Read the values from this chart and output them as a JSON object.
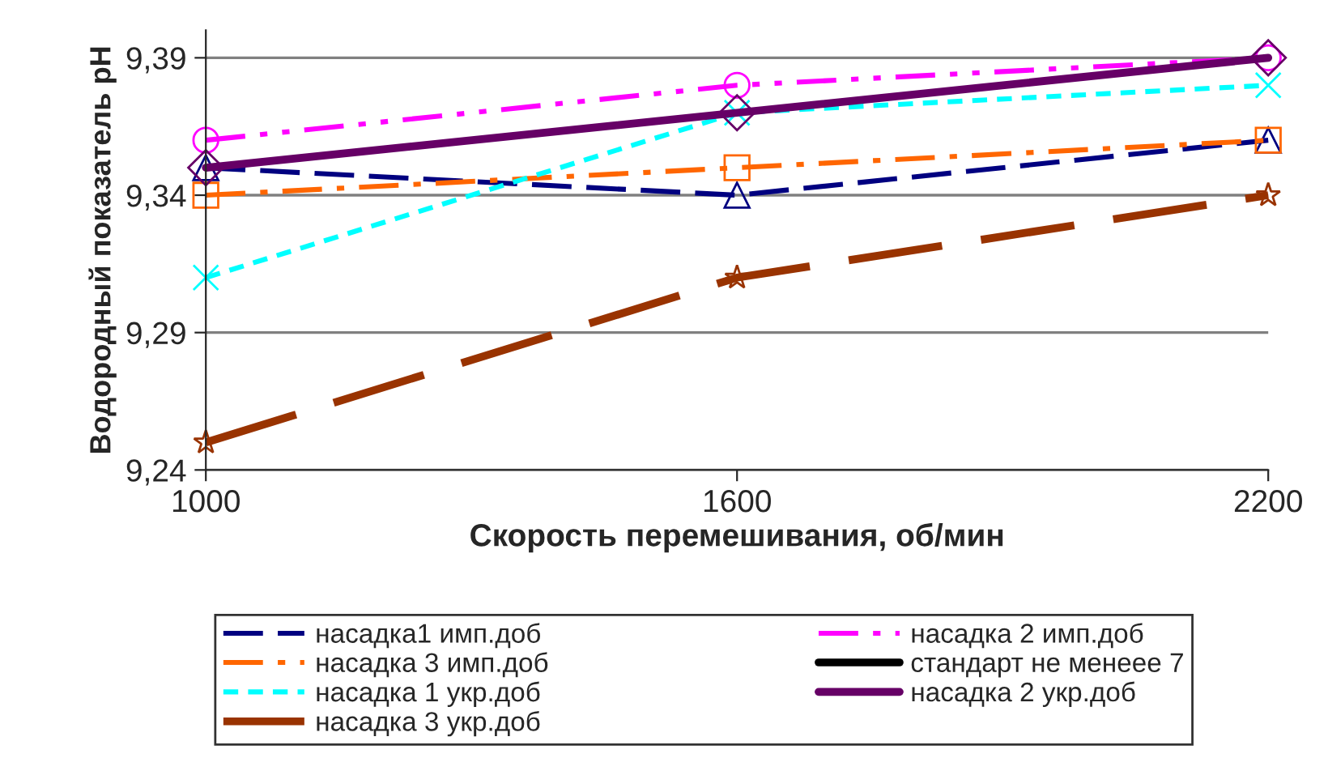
{
  "chart_data": {
    "type": "line",
    "xlabel": "Скорость перемешивания, об/мин",
    "ylabel": "Водородный показатель pH",
    "categories": [
      "1000",
      "1600",
      "2200"
    ],
    "ylim": [
      9.24,
      9.4
    ],
    "yticks": [
      {
        "value": 9.24,
        "label": "9,24"
      },
      {
        "value": 9.29,
        "label": "9,29"
      },
      {
        "value": 9.34,
        "label": "9,34"
      },
      {
        "value": 9.39,
        "label": "9,39"
      }
    ],
    "grid": "y",
    "legend": "bottom",
    "series": [
      {
        "name": "насадка1 имп.доб",
        "color": "#000080",
        "marker": "triangle",
        "line_style": "dashed",
        "values": [
          9.35,
          9.34,
          9.36
        ]
      },
      {
        "name": "насадка 2 имп.доб",
        "color": "#ff00ff",
        "marker": "circle",
        "line_style": "dashdotdot",
        "values": [
          9.36,
          9.38,
          9.39
        ]
      },
      {
        "name": "насадка 3 имп.доб",
        "color": "#ff6600",
        "marker": "square",
        "line_style": "dashdot",
        "values": [
          9.34,
          9.35,
          9.36
        ]
      },
      {
        "name": "стандарт не менеее 7",
        "color": "#000000",
        "marker": "none",
        "line_style": "solid",
        "values": [
          null,
          null,
          null
        ]
      },
      {
        "name": "насадка 1 укр.доб",
        "color": "#00ffff",
        "marker": "cross",
        "line_style": "dotted",
        "values": [
          9.31,
          9.37,
          9.38
        ]
      },
      {
        "name": "насадка 2 укр.доб",
        "color": "#660066",
        "marker": "diamond",
        "line_style": "solid",
        "values": [
          9.35,
          9.37,
          9.39
        ]
      },
      {
        "name": "насадка 3 укр.доб",
        "color": "#993300",
        "marker": "star",
        "line_style": "longdash",
        "values": [
          9.25,
          9.31,
          9.34
        ]
      }
    ]
  }
}
